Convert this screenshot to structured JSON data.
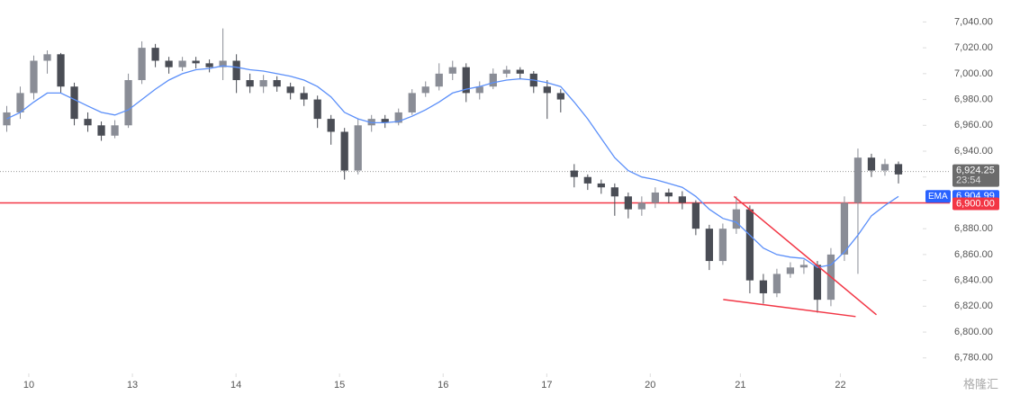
{
  "chart_data": {
    "type": "candlestick",
    "open": [
      6960,
      6970,
      6985,
      7010,
      7015,
      6990,
      6965,
      6960,
      6952,
      6960,
      6995,
      7020,
      7010,
      7005,
      7010,
      7008,
      7005,
      7010,
      6995,
      6990,
      6995,
      6990,
      6985,
      6980,
      6965,
      6955,
      6925,
      6960,
      6965,
      6962,
      6970,
      6985,
      6990,
      7000,
      7005,
      6985,
      6990,
      7000,
      7003,
      7000,
      6990,
      6985,
      6925,
      6920,
      6915,
      6912,
      6905,
      6895,
      6900,
      6908,
      6905,
      6900,
      6880,
      6855,
      6880,
      6895,
      6840,
      6830,
      6845,
      6850,
      6852,
      6825,
      6860,
      6900,
      6935,
      6925,
      6930
    ],
    "high": [
      6975,
      6990,
      7014,
      7018,
      7016,
      6993,
      6970,
      6963,
      6964,
      7000,
      7025,
      7023,
      7013,
      7013,
      7013,
      7011,
      7035,
      7015,
      7000,
      6999,
      6998,
      6993,
      6990,
      6983,
      6968,
      6958,
      6965,
      6968,
      6968,
      6973,
      6988,
      6994,
      7008,
      7010,
      7008,
      6994,
      7004,
      7006,
      7005,
      7002,
      6995,
      6988,
      6930,
      6922,
      6918,
      6915,
      6908,
      6905,
      6912,
      6911,
      6909,
      6902,
      6883,
      6884,
      6905,
      6898,
      6845,
      6849,
      6854,
      6856,
      6855,
      6865,
      6905,
      6942,
      6938,
      6934,
      6932
    ],
    "low": [
      6955,
      6965,
      6980,
      7000,
      6985,
      6960,
      6955,
      6948,
      6950,
      6958,
      6992,
      7005,
      7000,
      7002,
      7004,
      7001,
      6995,
      6985,
      6985,
      6985,
      6986,
      6980,
      6975,
      6958,
      6945,
      6918,
      6922,
      6955,
      6958,
      6960,
      6968,
      6982,
      6987,
      6995,
      6978,
      6980,
      6988,
      6997,
      6996,
      6985,
      6965,
      6970,
      6912,
      6910,
      6907,
      6890,
      6888,
      6890,
      6896,
      6900,
      6895,
      6875,
      6848,
      6852,
      6876,
      6830,
      6822,
      6827,
      6842,
      6845,
      6815,
      6820,
      6855,
      6845,
      6920,
      6921,
      6915
    ],
    "close": [
      6970,
      6985,
      7010,
      7015,
      6990,
      6965,
      6960,
      6952,
      6960,
      6995,
      7020,
      7010,
      7005,
      7010,
      7008,
      7005,
      7010,
      6995,
      6990,
      6995,
      6990,
      6985,
      6980,
      6965,
      6955,
      6925,
      6960,
      6965,
      6962,
      6970,
      6985,
      6990,
      7000,
      7005,
      6985,
      6990,
      7000,
      7003,
      7000,
      6990,
      6985,
      6980,
      6920,
      6915,
      6912,
      6905,
      6895,
      6900,
      6908,
      6905,
      6900,
      6880,
      6855,
      6880,
      6895,
      6840,
      6830,
      6845,
      6850,
      6852,
      6825,
      6860,
      6900,
      6935,
      6925,
      6930,
      6922
    ],
    "up_color": "#8a8d96",
    "down_color": "#4a4d55",
    "ema": {
      "name": "EMA",
      "color": "#5b8ff9",
      "values": [
        6965,
        6970,
        6978,
        6985,
        6985,
        6980,
        6975,
        6970,
        6968,
        6972,
        6980,
        6988,
        6995,
        7000,
        7003,
        7004,
        7006,
        7005,
        7003,
        7002,
        7000,
        6998,
        6995,
        6990,
        6982,
        6970,
        6965,
        6962,
        6962,
        6963,
        6967,
        6972,
        6978,
        6985,
        6988,
        6990,
        6993,
        6995,
        6996,
        6995,
        6993,
        6990,
        6978,
        6965,
        6950,
        6935,
        6925,
        6920,
        6918,
        6915,
        6912,
        6905,
        6895,
        6888,
        6885,
        6875,
        6865,
        6860,
        6858,
        6857,
        6850,
        6852,
        6862,
        6875,
        6890,
        6898,
        6905
      ],
      "last": {
        "value": 6904.99,
        "label": "6,904.99"
      },
      "box_color": "#2962ff"
    },
    "last_price": {
      "value": 6924.25,
      "label": "6,924.25",
      "countdown": "23:54",
      "box_color": "#6b6b6b"
    },
    "level": {
      "value": 6900,
      "label": "6,900.00",
      "color": "#f23645"
    },
    "trendlines": [
      {
        "color": "#f23645",
        "points": [
          [
            53.83,
            6905
          ],
          [
            64.37,
            6813.4
          ]
        ]
      },
      {
        "color": "#f23645",
        "points": [
          [
            53.03,
            6825.2
          ],
          [
            62.83,
            6812
          ]
        ]
      }
    ],
    "xlim": [
      -0.5,
      67.8
    ],
    "xticks": [
      {
        "value": 1.63,
        "label": "10"
      },
      {
        "value": 9.3,
        "label": "13"
      },
      {
        "value": 16.97,
        "label": "14"
      },
      {
        "value": 24.63,
        "label": "15"
      },
      {
        "value": 32.3,
        "label": "16"
      },
      {
        "value": 39.97,
        "label": "17"
      },
      {
        "value": 47.63,
        "label": "20"
      },
      {
        "value": 54.3,
        "label": "21"
      },
      {
        "value": 61.7,
        "label": "22"
      }
    ],
    "ylim": [
      6768,
      7057
    ],
    "yticks": [
      {
        "value": 6780,
        "label": "6,780.00"
      },
      {
        "value": 6800,
        "label": "6,800.00"
      },
      {
        "value": 6820,
        "label": "6,820.00"
      },
      {
        "value": 6840,
        "label": "6,840.00"
      },
      {
        "value": 6860,
        "label": "6,860.00"
      },
      {
        "value": 6880,
        "label": "6,880.00"
      },
      {
        "value": 6900,
        "label": "6,900.00"
      },
      {
        "value": 6920,
        "label": "6,920.00"
      },
      {
        "value": 6940,
        "label": "6,940.00"
      },
      {
        "value": 6960,
        "label": "6,960.00"
      },
      {
        "value": 6980,
        "label": "6,980.00"
      },
      {
        "value": 7000,
        "label": "7,000.00"
      },
      {
        "value": 7020,
        "label": "7,020.00"
      },
      {
        "value": 7040,
        "label": "7,040.00"
      }
    ],
    "watermark": "格隆汇"
  }
}
